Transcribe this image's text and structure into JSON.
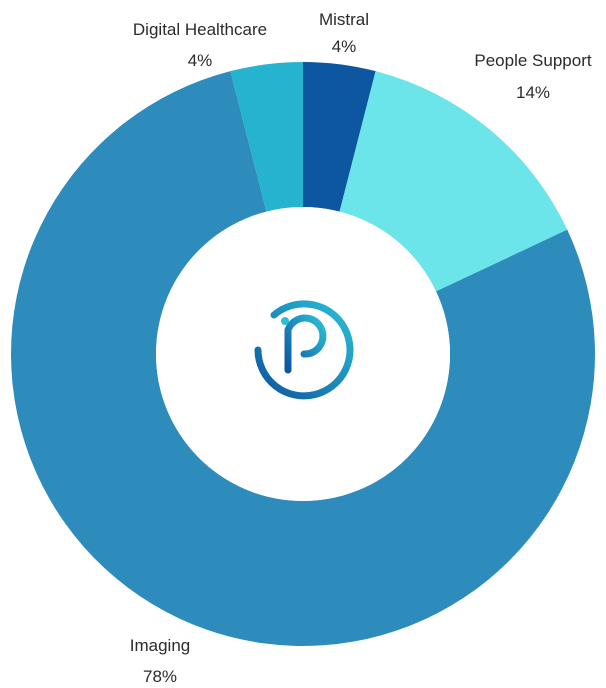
{
  "chart_data": {
    "type": "pie",
    "variant": "donut",
    "start_at": "12 o'clock",
    "direction": "clockwise",
    "slices": [
      {
        "label": "Mistral",
        "value": 4,
        "value_text": "4%",
        "color": "#0d56a0"
      },
      {
        "label": "People Support",
        "value": 14,
        "value_text": "14%",
        "color": "#6be5ea"
      },
      {
        "label": "Imaging",
        "value": 78,
        "value_text": "78%",
        "color": "#2e8cbc"
      },
      {
        "label": "Digital Healthcare",
        "value": 4,
        "value_text": "4%",
        "color": "#25b3cf"
      }
    ]
  },
  "center_logo": {
    "icon": "p-logo-icon",
    "colors": [
      "#0d56a0",
      "#2bbfd6"
    ]
  }
}
